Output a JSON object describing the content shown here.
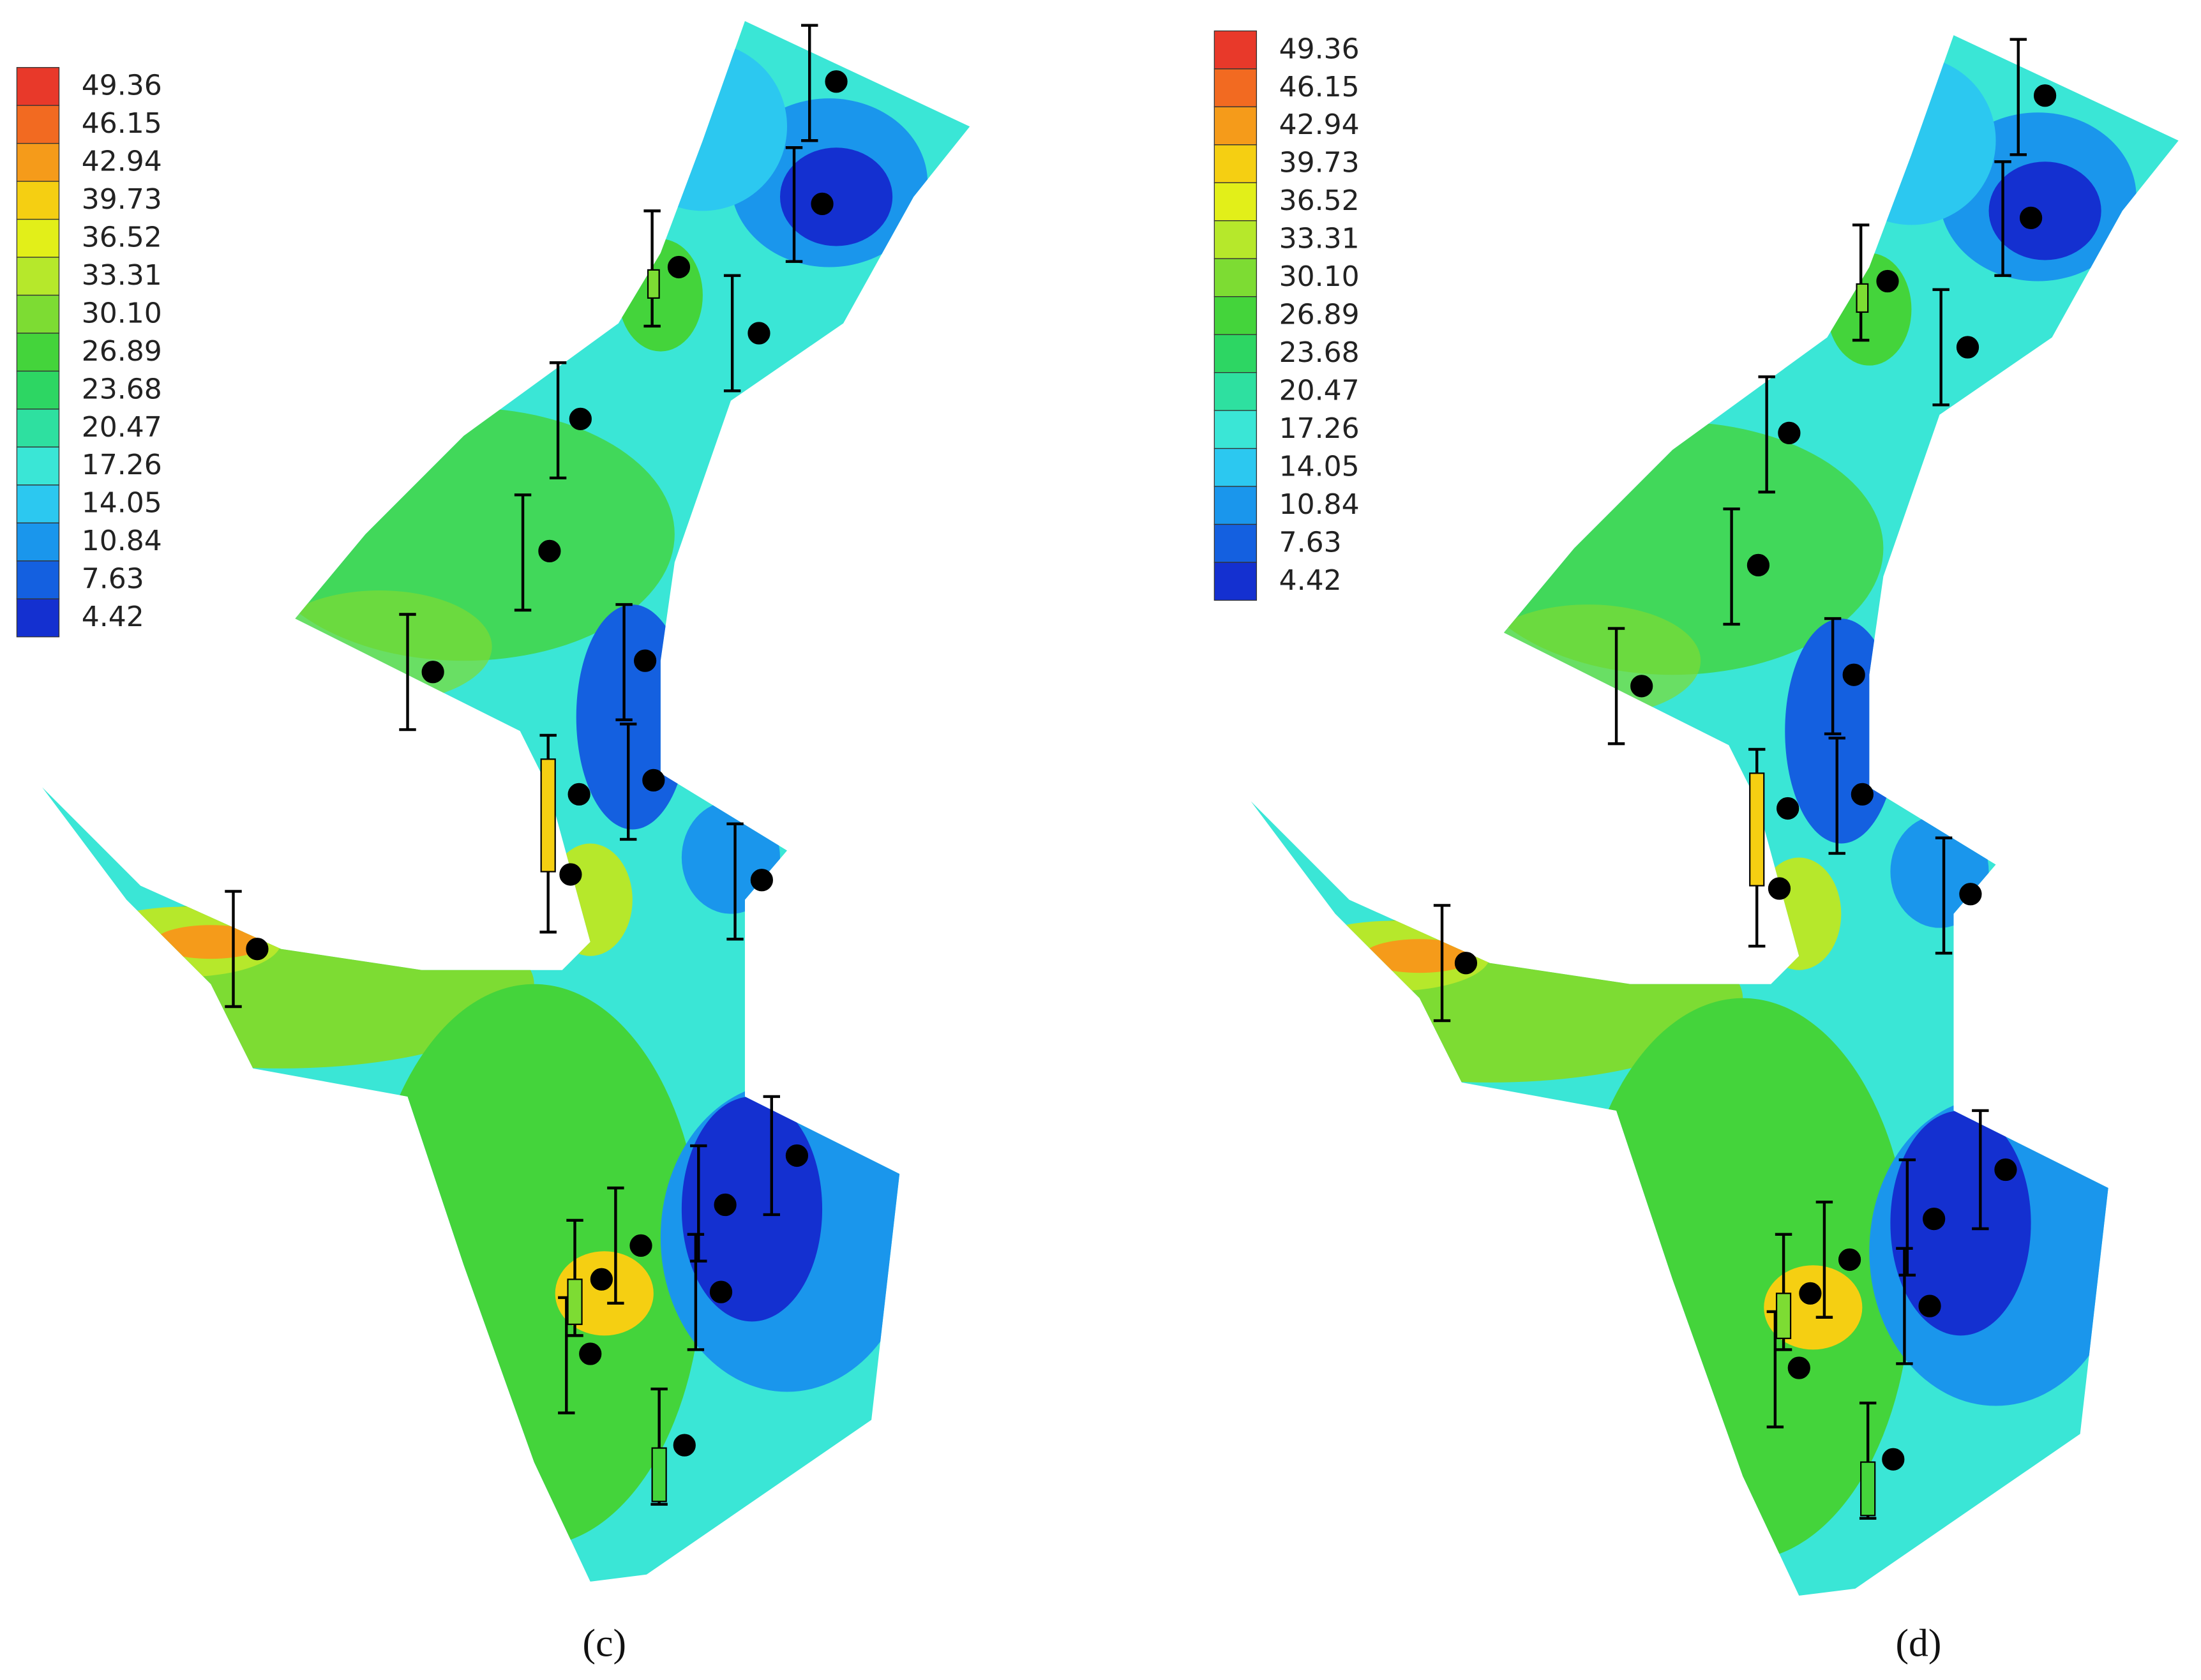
{
  "legend": {
    "levels": [
      "49.36",
      "46.15",
      "42.94",
      "39.73",
      "36.52",
      "33.31",
      "30.10",
      "26.89",
      "23.68",
      "20.47",
      "17.26",
      "14.05",
      "10.84",
      "7.63",
      "4.42"
    ],
    "colors": [
      "#e8392a",
      "#f26a21",
      "#f59b1a",
      "#f5cf12",
      "#e2ef19",
      "#b6e82b",
      "#7ddc33",
      "#44d43b",
      "#2dd663",
      "#2ee0a0",
      "#3ae6d6",
      "#2cc8f0",
      "#1a96ec",
      "#1460e0",
      "#1430d0"
    ]
  },
  "panels": [
    {
      "label": "(c)"
    },
    {
      "label": "(d)"
    }
  ]
}
